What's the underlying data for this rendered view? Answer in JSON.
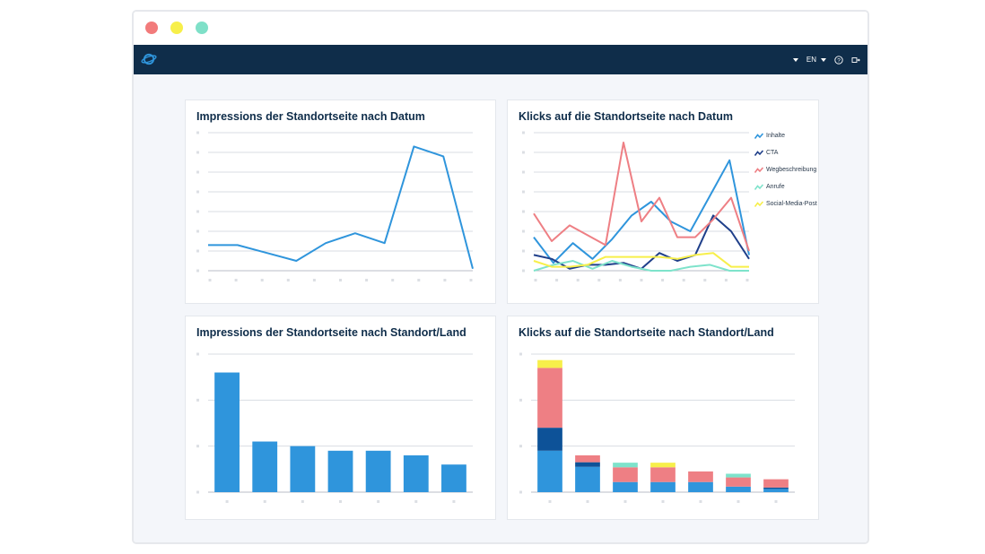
{
  "window": {
    "controls": [
      "close",
      "minimize",
      "zoom"
    ],
    "colors": {
      "close": "#f27b7b",
      "minimize": "#f7ef4a",
      "zoom": "#7fe0c8"
    }
  },
  "appbar": {
    "logo_icon": "planet-logo-icon",
    "language": "EN",
    "icons": [
      "dropdown-caret-icon",
      "help-icon",
      "logout-icon"
    ],
    "background": "#0f2d4a"
  },
  "charts": [
    {
      "title": "Impressions der Standortseite nach Datum"
    },
    {
      "title": "Klicks auf die Standortseite nach Datum"
    },
    {
      "title": "Impressions der Standortseite nach Standort/Land"
    },
    {
      "title": "Klicks auf die Standortseite nach Standort/Land"
    }
  ],
  "chart_data": [
    {
      "type": "line",
      "title": "Impressions der Standortseite nach Datum",
      "ylim": [
        0,
        7
      ],
      "grid": true,
      "series": [
        {
          "values": [
            1.3,
            1.3,
            0.9,
            0.5,
            1.4,
            1.9,
            1.4,
            6.3,
            5.8,
            0.1
          ],
          "color": "#2f95dc"
        }
      ]
    },
    {
      "type": "line",
      "title": "Klicks auf die Standortseite nach Datum",
      "ylim": [
        0,
        7
      ],
      "grid": true,
      "legend_position": "right",
      "series": [
        {
          "name": "Inhalte",
          "color": "#2f95dc",
          "values": [
            1.7,
            0.4,
            1.4,
            0.6,
            1.6,
            2.8,
            3.5,
            2.5,
            2.0,
            3.8,
            5.6,
            0.8
          ]
        },
        {
          "name": "CTA",
          "color": "#1f3f8a",
          "values": [
            0.8,
            0.6,
            0.1,
            0.3,
            0.3,
            0.4,
            0.1,
            0.9,
            0.5,
            0.8,
            2.8,
            2.0,
            0.6
          ]
        },
        {
          "name": "Wegbeschreibung",
          "color": "#ee7f84",
          "values": [
            2.9,
            1.5,
            2.3,
            1.8,
            1.3,
            6.5,
            2.5,
            3.7,
            1.7,
            1.7,
            2.6,
            3.7,
            1.0
          ]
        },
        {
          "name": "Anrufe",
          "color": "#7ee3cb",
          "values": [
            0.0,
            0.3,
            0.5,
            0.1,
            0.5,
            0.2,
            0.0,
            0.0,
            0.2,
            0.3,
            0.0,
            0.0
          ]
        },
        {
          "name": "Social-Media-Post",
          "color": "#f7ef4a",
          "values": [
            0.5,
            0.2,
            0.2,
            0.3,
            0.7,
            0.7,
            0.7,
            0.7,
            0.6,
            0.8,
            0.9,
            0.2,
            0.2
          ]
        }
      ]
    },
    {
      "type": "bar",
      "title": "Impressions der Standortseite nach Standort/Land",
      "ylim": [
        0,
        3
      ],
      "grid": true,
      "values": [
        2.6,
        1.1,
        1.0,
        0.9,
        0.9,
        0.8,
        0.6
      ],
      "color": "#2f95dc"
    },
    {
      "type": "bar",
      "stacked": true,
      "title": "Klicks auf die Standortseite nach Standort/Land",
      "ylim": [
        0,
        3
      ],
      "grid": true,
      "series": [
        {
          "name": "Inhalte",
          "color": "#2f95dc",
          "values": [
            0.9,
            0.55,
            0.22,
            0.22,
            0.22,
            0.12,
            0.07
          ]
        },
        {
          "name": "CTA",
          "color": "#0d5298",
          "values": [
            0.5,
            0.1,
            0,
            0,
            0,
            0,
            0.03
          ]
        },
        {
          "name": "Wegbeschreibung",
          "color": "#ee7f84",
          "values": [
            1.3,
            0.15,
            0.32,
            0.32,
            0.23,
            0.2,
            0.18
          ]
        },
        {
          "name": "Anrufe",
          "color": "#7ee3cb",
          "values": [
            0,
            0,
            0.1,
            0,
            0,
            0.08,
            0
          ]
        },
        {
          "name": "Social-Media-Post",
          "color": "#f7ef4a",
          "values": [
            0.17,
            0,
            0,
            0.1,
            0,
            0,
            0
          ]
        }
      ]
    }
  ]
}
